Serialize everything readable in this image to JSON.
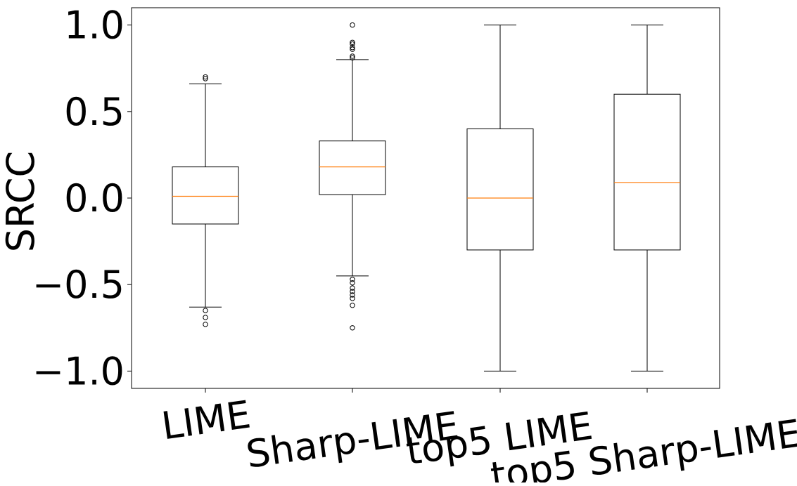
{
  "chart_data": {
    "type": "box",
    "title": "",
    "xlabel": "",
    "ylabel": "SRCC",
    "ylim": [
      -1.1,
      1.1
    ],
    "yticks": [
      1.0,
      0.5,
      0.0,
      -0.5,
      -1.0
    ],
    "ytick_labels": [
      "1.0",
      "0.5",
      "0.0",
      "−0.5",
      "−1.0"
    ],
    "grid": false,
    "box_color": "#000000",
    "median_color": "#ff7f0e",
    "categories": [
      "LIME",
      "Sharp-LIME",
      "top5 LIME",
      "top5 Sharp-LIME"
    ],
    "boxes": [
      {
        "whisker_low": -0.63,
        "q1": -0.15,
        "median": 0.01,
        "q3": 0.18,
        "whisker_high": 0.66,
        "outliers": [
          0.7,
          0.69,
          -0.65,
          -0.69,
          -0.73
        ]
      },
      {
        "whisker_low": -0.45,
        "q1": 0.02,
        "median": 0.18,
        "q3": 0.33,
        "whisker_high": 0.8,
        "outliers": [
          1.0,
          0.9,
          0.89,
          0.87,
          0.86,
          0.82,
          0.81,
          -0.47,
          -0.49,
          -0.52,
          -0.54,
          -0.56,
          -0.58,
          -0.62,
          -0.75
        ]
      },
      {
        "whisker_low": -1.0,
        "q1": -0.3,
        "median": 0.0,
        "q3": 0.4,
        "whisker_high": 1.0,
        "outliers": []
      },
      {
        "whisker_low": -1.0,
        "q1": -0.3,
        "median": 0.09,
        "q3": 0.6,
        "whisker_high": 1.0,
        "outliers": []
      }
    ]
  }
}
